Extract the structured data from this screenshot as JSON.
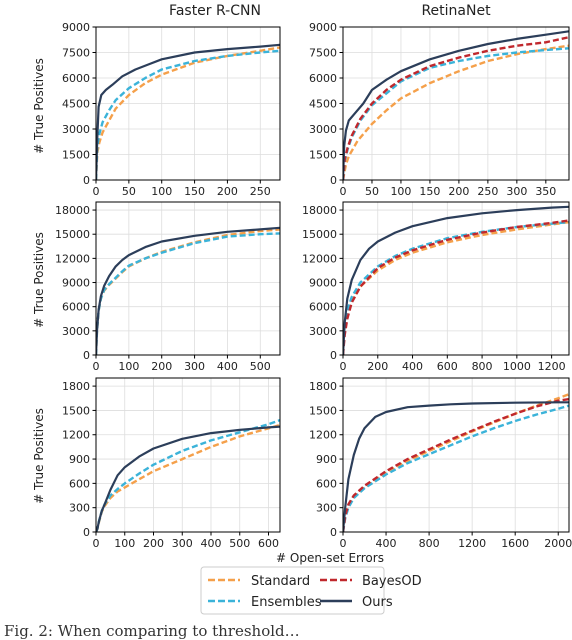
{
  "caption_fragment": "Fig. 2: When comparing to threshold…",
  "chart_data": {
    "type": "line",
    "layout": "3x2 grid",
    "column_titles": [
      "Faster R-CNN",
      "RetinaNet"
    ],
    "ylabel": "# True Positives",
    "xlabel": "# Open-set Errors",
    "grid": true,
    "legend": {
      "placement": "bottom-center",
      "entries": [
        {
          "name": "Standard",
          "color": "#f5a04a",
          "dash": "dashed"
        },
        {
          "name": "BayesOD",
          "color": "#c0282d",
          "dash": "dashed"
        },
        {
          "name": "Ensembles",
          "color": "#3bb3d9",
          "dash": "dashed"
        },
        {
          "name": "Ours",
          "color": "#2c3e5a",
          "dash": "solid"
        }
      ]
    },
    "subplots": [
      {
        "row": 0,
        "col": 0,
        "xlim": [
          0,
          280
        ],
        "ylim": [
          0,
          9000
        ],
        "xticks": [
          0,
          50,
          100,
          150,
          200,
          250
        ],
        "yticks": [
          0,
          1500,
          3000,
          4500,
          6000,
          7500,
          9000
        ],
        "series": [
          {
            "name": "Standard",
            "x": [
              0,
              2,
              5,
              10,
              20,
              30,
              50,
              75,
              100,
              150,
              200,
              250,
              280
            ],
            "y": [
              0,
              1600,
              2200,
              2800,
              3500,
              4200,
              5000,
              5700,
              6200,
              6900,
              7300,
              7600,
              7800
            ]
          },
          {
            "name": "Ensembles",
            "x": [
              0,
              2,
              5,
              10,
              20,
              30,
              50,
              75,
              100,
              150,
              200,
              250,
              280
            ],
            "y": [
              0,
              2000,
              2700,
              3400,
              4100,
              4700,
              5400,
              6000,
              6500,
              7000,
              7300,
              7500,
              7600
            ]
          },
          {
            "name": "Ours",
            "x": [
              0,
              2,
              4,
              8,
              15,
              25,
              40,
              60,
              80,
              100,
              150,
              200,
              250,
              280
            ],
            "y": [
              0,
              2500,
              4300,
              5000,
              5300,
              5600,
              6100,
              6500,
              6800,
              7100,
              7500,
              7700,
              7850,
              7950
            ]
          }
        ]
      },
      {
        "row": 0,
        "col": 1,
        "xlim": [
          0,
          390
        ],
        "ylim": [
          0,
          9000
        ],
        "xticks": [
          0,
          50,
          100,
          150,
          200,
          250,
          300,
          350
        ],
        "yticks": [
          0,
          1500,
          3000,
          4500,
          6000,
          7500,
          9000
        ],
        "series": [
          {
            "name": "Standard",
            "x": [
              0,
              5,
              10,
              25,
              50,
              75,
              100,
              150,
              200,
              250,
              300,
              350,
              390
            ],
            "y": [
              0,
              900,
              1400,
              2300,
              3300,
              4100,
              4800,
              5700,
              6400,
              7000,
              7400,
              7700,
              7900
            ]
          },
          {
            "name": "BayesOD",
            "x": [
              0,
              3,
              8,
              15,
              30,
              50,
              75,
              100,
              150,
              200,
              250,
              300,
              350,
              390
            ],
            "y": [
              0,
              1200,
              1900,
              2600,
              3600,
              4500,
              5300,
              5900,
              6700,
              7200,
              7600,
              7900,
              8100,
              8400
            ]
          },
          {
            "name": "Ensembles",
            "x": [
              0,
              3,
              8,
              15,
              30,
              50,
              75,
              100,
              150,
              200,
              250,
              300,
              350,
              390
            ],
            "y": [
              0,
              1100,
              1800,
              2500,
              3500,
              4400,
              5100,
              5800,
              6600,
              7000,
              7300,
              7500,
              7650,
              7750
            ]
          },
          {
            "name": "Ours",
            "x": [
              0,
              2,
              5,
              10,
              20,
              35,
              50,
              75,
              100,
              150,
              200,
              250,
              300,
              350,
              390
            ],
            "y": [
              0,
              2000,
              2900,
              3500,
              3900,
              4500,
              5300,
              5900,
              6400,
              7100,
              7600,
              8000,
              8300,
              8550,
              8750
            ]
          }
        ]
      },
      {
        "row": 1,
        "col": 0,
        "xlim": [
          0,
          560
        ],
        "ylim": [
          0,
          19000
        ],
        "xticks": [
          0,
          100,
          200,
          300,
          400,
          500
        ],
        "yticks": [
          0,
          3000,
          6000,
          9000,
          12000,
          15000,
          18000
        ],
        "series": [
          {
            "name": "Standard",
            "x": [
              0,
              3,
              8,
              15,
              25,
              40,
              60,
              80,
              100,
              150,
              200,
              300,
              400,
              500,
              560
            ],
            "y": [
              0,
              3000,
              5500,
              7000,
              8000,
              8700,
              9500,
              10300,
              11000,
              12000,
              12800,
              14000,
              14900,
              15400,
              15600
            ]
          },
          {
            "name": "Ensembles",
            "x": [
              0,
              3,
              8,
              15,
              25,
              40,
              60,
              80,
              100,
              150,
              200,
              300,
              400,
              500,
              560
            ],
            "y": [
              0,
              3000,
              5500,
              7000,
              8100,
              8800,
              9600,
              10400,
              11100,
              12000,
              12700,
              13900,
              14700,
              15000,
              15100
            ]
          },
          {
            "name": "Ours",
            "x": [
              0,
              3,
              8,
              15,
              25,
              40,
              60,
              80,
              100,
              150,
              200,
              300,
              400,
              500,
              560
            ],
            "y": [
              0,
              3000,
              5600,
              7300,
              8600,
              9800,
              11000,
              11800,
              12400,
              13400,
              14100,
              14800,
              15300,
              15600,
              15800
            ]
          }
        ]
      },
      {
        "row": 1,
        "col": 1,
        "xlim": [
          0,
          1300
        ],
        "ylim": [
          0,
          19000
        ],
        "xticks": [
          0,
          200,
          400,
          600,
          800,
          1000,
          1200
        ],
        "yticks": [
          0,
          3000,
          6000,
          9000,
          12000,
          15000,
          18000
        ],
        "series": [
          {
            "name": "Standard",
            "x": [
              0,
              10,
              25,
              50,
              100,
              200,
              300,
              400,
              600,
              800,
              1000,
              1200,
              1300
            ],
            "y": [
              0,
              3000,
              5000,
              6800,
              8500,
              10500,
              11800,
              12700,
              14000,
              14900,
              15600,
              16200,
              16500
            ]
          },
          {
            "name": "BayesOD",
            "x": [
              0,
              10,
              25,
              50,
              100,
              200,
              300,
              400,
              600,
              800,
              1000,
              1200,
              1300
            ],
            "y": [
              0,
              2500,
              4500,
              6500,
              8500,
              10800,
              12100,
              13000,
              14300,
              15200,
              15900,
              16400,
              16700
            ]
          },
          {
            "name": "Ensembles",
            "x": [
              0,
              10,
              25,
              50,
              100,
              200,
              300,
              400,
              600,
              800,
              1000,
              1200,
              1300
            ],
            "y": [
              0,
              3200,
              5500,
              7200,
              9000,
              11000,
              12300,
              13200,
              14500,
              15300,
              15900,
              16300,
              16500
            ]
          },
          {
            "name": "Ours",
            "x": [
              0,
              10,
              25,
              50,
              100,
              150,
              200,
              300,
              400,
              600,
              800,
              1000,
              1200,
              1300
            ],
            "y": [
              0,
              4000,
              7000,
              9300,
              11800,
              13200,
              14100,
              15200,
              16000,
              17000,
              17600,
              18000,
              18300,
              18400
            ]
          }
        ]
      },
      {
        "row": 2,
        "col": 0,
        "xlim": [
          0,
          640
        ],
        "ylim": [
          0,
          1900
        ],
        "xticks": [
          0,
          100,
          200,
          300,
          400,
          500,
          600
        ],
        "yticks": [
          0,
          300,
          600,
          900,
          1200,
          1500,
          1800
        ],
        "series": [
          {
            "name": "Standard",
            "x": [
              0,
              5,
              10,
              20,
              30,
              50,
              75,
              100,
              150,
              200,
              300,
              400,
              500,
              600,
              640
            ],
            "y": [
              0,
              40,
              120,
              250,
              320,
              420,
              500,
              550,
              650,
              750,
              900,
              1050,
              1180,
              1280,
              1320
            ]
          },
          {
            "name": "Ensembles",
            "x": [
              0,
              5,
              10,
              20,
              30,
              50,
              75,
              100,
              150,
              200,
              300,
              400,
              500,
              600,
              640
            ],
            "y": [
              0,
              40,
              130,
              260,
              340,
              450,
              530,
              600,
              720,
              830,
              1000,
              1130,
              1230,
              1330,
              1380
            ]
          },
          {
            "name": "Ours",
            "x": [
              0,
              5,
              10,
              20,
              30,
              50,
              75,
              100,
              150,
              200,
              300,
              400,
              500,
              600,
              640
            ],
            "y": [
              0,
              40,
              130,
              260,
              340,
              520,
              700,
              800,
              930,
              1030,
              1150,
              1220,
              1260,
              1290,
              1300
            ]
          }
        ]
      },
      {
        "row": 2,
        "col": 1,
        "xlim": [
          0,
          2100
        ],
        "ylim": [
          0,
          1900
        ],
        "xticks": [
          0,
          400,
          800,
          1200,
          1600,
          2000
        ],
        "yticks": [
          0,
          300,
          600,
          900,
          1200,
          1500,
          1800
        ],
        "series": [
          {
            "name": "Standard",
            "x": [
              0,
              20,
              50,
              100,
              200,
              400,
              600,
              800,
              1000,
              1200,
              1400,
              1600,
              1800,
              2000,
              2100
            ],
            "y": [
              0,
              180,
              320,
              430,
              550,
              730,
              880,
              1000,
              1120,
              1240,
              1350,
              1460,
              1560,
              1650,
              1700
            ]
          },
          {
            "name": "BayesOD",
            "x": [
              0,
              20,
              50,
              100,
              200,
              400,
              600,
              800,
              1000,
              1200,
              1400,
              1600,
              1800,
              2000,
              2100
            ],
            "y": [
              0,
              200,
              340,
              450,
              570,
              750,
              900,
              1020,
              1140,
              1250,
              1360,
              1460,
              1550,
              1620,
              1640
            ]
          },
          {
            "name": "Ensembles",
            "x": [
              0,
              20,
              50,
              100,
              200,
              400,
              600,
              800,
              1000,
              1200,
              1400,
              1600,
              1800,
              2000,
              2100
            ],
            "y": [
              0,
              170,
              300,
              420,
              540,
              710,
              850,
              960,
              1070,
              1180,
              1280,
              1370,
              1450,
              1520,
              1560
            ]
          },
          {
            "name": "Ours",
            "x": [
              0,
              20,
              50,
              100,
              150,
              200,
              300,
              400,
              600,
              800,
              1000,
              1200,
              1600,
              2000,
              2100
            ],
            "y": [
              0,
              300,
              650,
              950,
              1150,
              1280,
              1420,
              1480,
              1540,
              1560,
              1575,
              1585,
              1595,
              1600,
              1600
            ]
          }
        ]
      }
    ]
  }
}
